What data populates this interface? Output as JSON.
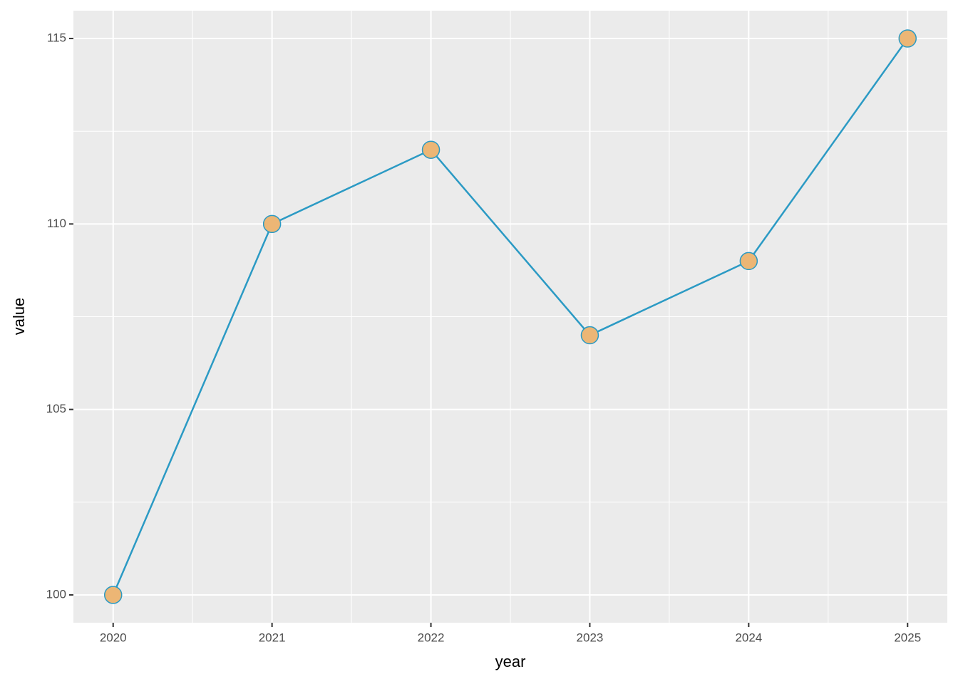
{
  "chart_data": {
    "type": "line",
    "x_label": "year",
    "y_label": "value",
    "x": [
      2020,
      2021,
      2022,
      2023,
      2024,
      2025
    ],
    "series": [
      {
        "values": [
          100,
          110,
          112,
          107,
          109,
          115
        ],
        "color": "#2b9ac4",
        "marker_fill": "#ecb675"
      }
    ],
    "xlim": [
      2019.75,
      2025.25
    ],
    "xticks": [
      2020,
      2021,
      2022,
      2023,
      2024,
      2025
    ],
    "xminor": [
      2020.5,
      2021.5,
      2022.5,
      2023.5,
      2024.5
    ],
    "ylim": [
      99.25,
      115.75
    ],
    "yticks": [
      100,
      105,
      110,
      115
    ],
    "yminor": [
      102.5,
      107.5,
      112.5
    ],
    "grid": true
  }
}
